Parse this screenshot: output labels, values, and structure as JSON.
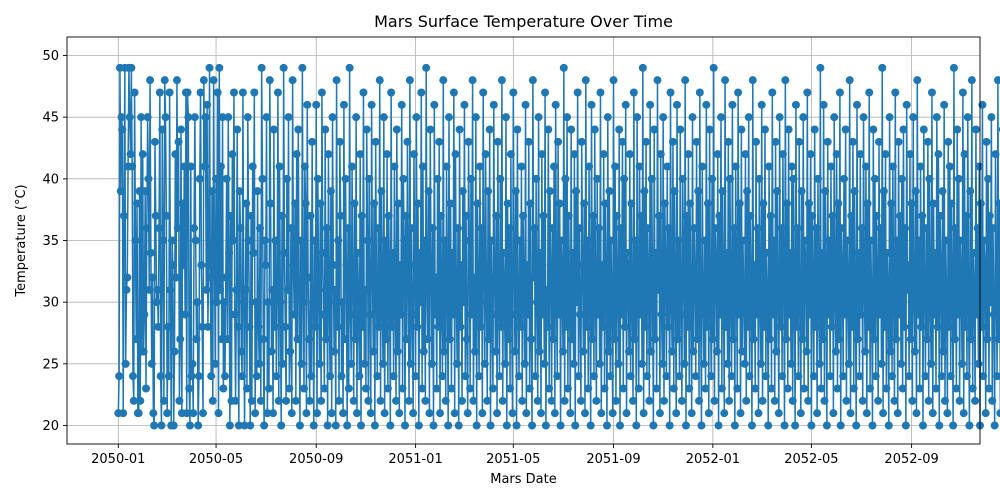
{
  "chart_data": {
    "type": "line",
    "title": "Mars Surface Temperature Over Time",
    "xlabel": "Mars Date",
    "ylabel": "Temperature (°C)",
    "x_start": "2050-01-01",
    "x_end": "2052-09-30",
    "xlim": [
      "2049-10-30",
      "2052-11-24"
    ],
    "ylim": [
      18.5,
      51.5
    ],
    "x_ticks": [
      "2050-01",
      "2050-05",
      "2050-09",
      "2051-01",
      "2051-05",
      "2051-09",
      "2052-01",
      "2052-05",
      "2052-09"
    ],
    "y_ticks": [
      20,
      25,
      30,
      35,
      40,
      45,
      50
    ],
    "grid": true,
    "marker": "circle",
    "line_color": "#1f77b4",
    "series": [
      {
        "name": "",
        "values": [
          21,
          24,
          49,
          39,
          45,
          44,
          21,
          37,
          49,
          25,
          31,
          32,
          41,
          49,
          45,
          42,
          49,
          41,
          24,
          22,
          47,
          35,
          27,
          38,
          21,
          21,
          39,
          22,
          45,
          26,
          42,
          26,
          29,
          39,
          23,
          36,
          45,
          40,
          31,
          48,
          34,
          25,
          32,
          21,
          20,
          43,
          37,
          30,
          31,
          28,
          36,
          47,
          24,
          20,
          44,
          35,
          22,
          48,
          45,
          37,
          21,
          28,
          24,
          47,
          31,
          20,
          35,
          33,
          20,
          26,
          42,
          32,
          48,
          36,
          43,
          22,
          27,
          44,
          21,
          38,
          33,
          41,
          29,
          47,
          21,
          47,
          45,
          23,
          20,
          41,
          24,
          25,
          21,
          36,
          45,
          35,
          27,
          30,
          20,
          24,
          40,
          47,
          33,
          28,
          21,
          48,
          41,
          45,
          31,
          46,
          28,
          33,
          49,
          32,
          24,
          39,
          22,
          48,
          35,
          25,
          40,
          30,
          47,
          21,
          49,
          31,
          41,
          27,
          45,
          23,
          30,
          24,
          32,
          40,
          27,
          45,
          34,
          20,
          37,
          22,
          42,
          35,
          47,
          29,
          22,
          31,
          44,
          28,
          20,
          39,
          36,
          26,
          24,
          47,
          30,
          20,
          31,
          38,
          23,
          45,
          35,
          28,
          20,
          37,
          22,
          41,
          34,
          47,
          21,
          30,
          24,
          39,
          28,
          25,
          36,
          22,
          49,
          40,
          27,
          20,
          35,
          33,
          45,
          21,
          30,
          23,
          48,
          38,
          26,
          31,
          21,
          44,
          28,
          35,
          24,
          32,
          47,
          22,
          41,
          30,
          20,
          37,
          25,
          49,
          34,
          28,
          22,
          40,
          31,
          45,
          23,
          26,
          36,
          21,
          48,
          33,
          29,
          38,
          22,
          42,
          27,
          44,
          31,
          20,
          35,
          25,
          49,
          30,
          23,
          41,
          38,
          21,
          46,
          32,
          27,
          22,
          37,
          24,
          43,
          30,
          20,
          35,
          28,
          46,
          21,
          40,
          31,
          25,
          38,
          22,
          47,
          34,
          29,
          23,
          44,
          27,
          36,
          20,
          42,
          30,
          24,
          39,
          21,
          45,
          33,
          26,
          31,
          20,
          48,
          28,
          35,
          22,
          43,
          37,
          24,
          30,
          21,
          46,
          27,
          40,
          33,
          20,
          36,
          23,
          49,
          29,
          25,
          41,
          32,
          22,
          38,
          27,
          45,
          21,
          34,
          30,
          24,
          42,
          20,
          37,
          28,
          47,
          25,
          31,
          23,
          44,
          35,
          22,
          40,
          29,
          21,
          46,
          33,
          26,
          38,
          20,
          43,
          31,
          24,
          36,
          28,
          48,
          22,
          39,
          30,
          25,
          45,
          21,
          35,
          27,
          42,
          23,
          37,
          32,
          20,
          47,
          28,
          34,
          24,
          41,
          30,
          22,
          44,
          26,
          38,
          21,
          33,
          29,
          46,
          23,
          40,
          35,
          20,
          37,
          27,
          43,
          31,
          22,
          48,
          25,
          36,
          29,
          21,
          42,
          33,
          24,
          45,
          28,
          38,
          20,
          34,
          30,
          47,
          23,
          41,
          26,
          35,
          22,
          49,
          31,
          27,
          39,
          21,
          44,
          33,
          25,
          36,
          20,
          46,
          29,
          32,
          23,
          40,
          28,
          43,
          21,
          37,
          30,
          24,
          48,
          26,
          35,
          22,
          41,
          32,
          20,
          45,
          27,
          38,
          23,
          34,
          29,
          47,
          21,
          42,
          31,
          25,
          36,
          20,
          44,
          28,
          33,
          22,
          39,
          30,
          46,
          24,
          37,
          27,
          21,
          43,
          35,
          23,
          40,
          29,
          48,
          22,
          32,
          26,
          45,
          20,
          38,
          31,
          24,
          41,
          28,
          36,
          21,
          47,
          33,
          25,
          42,
          30,
          22,
          39,
          27,
          44,
          20,
          35,
          29,
          23,
          46,
          32,
          26,
          37,
          21,
          43,
          30,
          24,
          40,
          28,
          48,
          22,
          34,
          31,
          25,
          45,
          20,
          38,
          27,
          36,
          23,
          42,
          29,
          21,
          47,
          33,
          26,
          39,
          20,
          44,
          30,
          24,
          35,
          28,
          41,
          22,
          37,
          31,
          25,
          46,
          21,
          33,
          29,
          43,
          23,
          38,
          27,
          20,
          48,
          32,
          36,
          24,
          40,
          30,
          22,
          45,
          26,
          34,
          21,
          42,
          29,
          37,
          25,
          47,
          20,
          31,
          28,
          44,
          23,
          39,
          33,
          22,
          36,
          27,
          41,
          21,
          46,
          30,
          24,
          43,
          29,
          38,
          20,
          35,
          32,
          26,
          49,
          22,
          40,
          28,
          45,
          23,
          37,
          31,
          21,
          44,
          27,
          34,
          25,
          42,
          20,
          39,
          30,
          47,
          24,
          36,
          29,
          22,
          43,
          33,
          26,
          38,
          21,
          48,
          28,
          35,
          23,
          41,
          31,
          20,
          46,
          27,
          37,
          24,
          44,
          30,
          22,
          40,
          29,
          36,
          25,
          47,
          21,
          33,
          28,
          42,
          23,
          38,
          32,
          20,
          45,
          26,
          39,
          24,
          35,
          30,
          21,
          48,
          27,
          41,
          22,
          37,
          31,
          25,
          44,
          20,
          36,
          29,
          43,
          23,
          40,
          28,
          46,
          21,
          34,
          33,
          26,
          42,
          24,
          38,
          30,
          22,
          47,
          27,
          35,
          20,
          45,
          31,
          23,
          41,
          29,
          37,
          25,
          49,
          21,
          39,
          28,
          43,
          24,
          36,
          32,
          22,
          46,
          26,
          40,
          30,
          20,
          44,
          27,
          34,
          23,
          48,
          31,
          37,
          21,
          42,
          29,
          25,
          45,
          22,
          38,
          33,
          24,
          41,
          28,
          36,
          20,
          47,
          30,
          26,
          43,
          23,
          39,
          31,
          21,
          46,
          27,
          35,
          24,
          44,
          29,
          22,
          40,
          33,
          25,
          48,
          20,
          37,
          28,
          42,
          23,
          38,
          30,
          21,
          45,
          26,
          36,
          32,
          24,
          43,
          27,
          39,
          22,
          47,
          29,
          20,
          41,
          31,
          25,
          35,
          23,
          46,
          28,
          38,
          21,
          44,
          30,
          24,
          40,
          27,
          49,
          22,
          36,
          33,
          26,
          42,
          20,
          37,
          29,
          45,
          23,
          39,
          31,
          21,
          48,
          28,
          34,
          25,
          43,
          22,
          40,
          30,
          24,
          46,
          27,
          36,
          20,
          41,
          32,
          23,
          47,
          29,
          38,
          21,
          44,
          26,
          35,
          30,
          25,
          42,
          22,
          39,
          28,
          45,
          24,
          37,
          31,
          20,
          48,
          27,
          33,
          23,
          43,
          29,
          36,
          21,
          40,
          30,
          25,
          46,
          22,
          38,
          28,
          44,
          24,
          34,
          31,
          20,
          41,
          27,
          37,
          23,
          47,
          29,
          35,
          22,
          43,
          26,
          39,
          30,
          21,
          45,
          28,
          36,
          24,
          42,
          32,
          20,
          48,
          27,
          38,
          23,
          44,
          29,
          34,
          25,
          41,
          22,
          40,
          31,
          20,
          46,
          28,
          36,
          24,
          43,
          30,
          21,
          39,
          27,
          45,
          23,
          35,
          33,
          26,
          47,
          22,
          38,
          29,
          42,
          20,
          37,
          31,
          24,
          44,
          28,
          36,
          21,
          40,
          30,
          25,
          49,
          23,
          34,
          27,
          46,
          22,
          39,
          32,
          20,
          43,
          29,
          35,
          24,
          41,
          28,
          37,
          21,
          45,
          30,
          26,
          42,
          23,
          38,
          27,
          47,
          20,
          36,
          33,
          24,
          40,
          29,
          44,
          22,
          35,
          31,
          25,
          48,
          21,
          37,
          28,
          43,
          23,
          39,
          30,
          20,
          46,
          27,
          34,
          24,
          42,
          29,
          36,
          22,
          45,
          31,
          26,
          41,
          21,
          38,
          28,
          47,
          23,
          35,
          30,
          20,
          44,
          27,
          40,
          24,
          37,
          32,
          22,
          43,
          29,
          36,
          25,
          49,
          21,
          39,
          28,
          42,
          23,
          34,
          31,
          20,
          45,
          26,
          38,
          24,
          41,
          30,
          22,
          47,
          27,
          35,
          21,
          43,
          29,
          37,
          25,
          40,
          23,
          44,
          28,
          36,
          20,
          46,
          31,
          33,
          24,
          42,
          27,
          38,
          22,
          45,
          30,
          26,
          39,
          21,
          48,
          29,
          35,
          23,
          41,
          28,
          37,
          20,
          44,
          31,
          24,
          36,
          27,
          43,
          22,
          40,
          30,
          25,
          47,
          21,
          38,
          29,
          34,
          23,
          45,
          28,
          42,
          20,
          37,
          33,
          24,
          39,
          26,
          46,
          22,
          35,
          30,
          21,
          43,
          28,
          41,
          24,
          38,
          31,
          20,
          49,
          27,
          36,
          23,
          44,
          29,
          40,
          22,
          35,
          32,
          25,
          47,
          21,
          42,
          28,
          37,
          24,
          45,
          30,
          20,
          39,
          27,
          48,
          23,
          34,
          31,
          22,
          44,
          29,
          36,
          25,
          41,
          20,
          38,
          28,
          46,
          24,
          35,
          33,
          21,
          43,
          27,
          40,
          23,
          37,
          30,
          45,
          22,
          36,
          29,
          20,
          42,
          31,
          24,
          48,
          27,
          38,
          21,
          35,
          30,
          44,
          23,
          41,
          29,
          37,
          20,
          46,
          32,
          25,
          39,
          22,
          43,
          28,
          36,
          24,
          47,
          21,
          40,
          30,
          34,
          23,
          45,
          27,
          38,
          22,
          49,
          29,
          35,
          20,
          42,
          31,
          24,
          44,
          28,
          37,
          21,
          40,
          23,
          48,
          30,
          36,
          25,
          43,
          22,
          39,
          27,
          45,
          20,
          34,
          31,
          24,
          47,
          29,
          37,
          21,
          41,
          28,
          44,
          23,
          36,
          30,
          20,
          42,
          26,
          38,
          22,
          46,
          29,
          35,
          24,
          48,
          21,
          40,
          31,
          23,
          43,
          28,
          37,
          20,
          45,
          30,
          33,
          22,
          41,
          27,
          39,
          24,
          47,
          29,
          36,
          21,
          44,
          31,
          23,
          42,
          28,
          20,
          38,
          30,
          48,
          22,
          34,
          27,
          45,
          25,
          40,
          29,
          21,
          43,
          31,
          36,
          23,
          46,
          20,
          39,
          28,
          44,
          30,
          22,
          37,
          24,
          41,
          29,
          33,
          21,
          48,
          27,
          35,
          23,
          45,
          30,
          42,
          20,
          38,
          28,
          44,
          22,
          36,
          31,
          24,
          48,
          29,
          21,
          40,
          30,
          23,
          45,
          22,
          41,
          20,
          44,
          21,
          30,
          23,
          45,
          21
        ]
      }
    ]
  }
}
